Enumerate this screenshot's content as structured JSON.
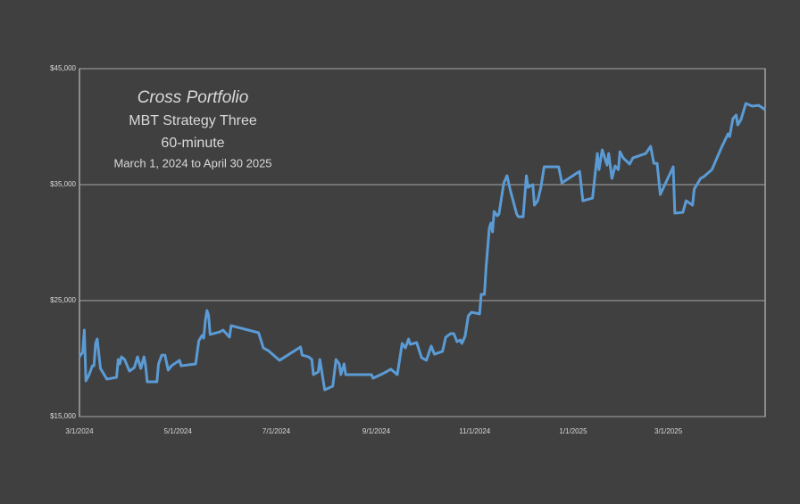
{
  "chart_data": {
    "type": "line",
    "title": "Cross Portfolio",
    "subtitle": [
      "MBT Strategy Three",
      "60-minute",
      "March 1, 2024 to April 30 2025"
    ],
    "x": [
      "2024-03-01",
      "2024-03-03",
      "2024-03-04",
      "2024-03-05",
      "2024-03-07",
      "2024-03-09",
      "2024-03-10",
      "2024-03-11",
      "2024-03-12",
      "2024-03-14",
      "2024-03-18",
      "2024-03-24",
      "2024-03-25",
      "2024-03-26",
      "2024-03-27",
      "2024-03-29",
      "2024-04-01",
      "2024-04-04",
      "2024-04-06",
      "2024-04-08",
      "2024-04-10",
      "2024-04-11",
      "2024-04-12",
      "2024-04-18",
      "2024-04-19",
      "2024-04-21",
      "2024-04-23",
      "2024-04-25",
      "2024-04-27",
      "2024-05-02",
      "2024-05-03",
      "2024-05-12",
      "2024-05-14",
      "2024-05-16",
      "2024-05-17",
      "2024-05-18",
      "2024-05-19",
      "2024-05-20",
      "2024-05-21",
      "2024-05-27",
      "2024-05-29",
      "2024-06-01",
      "2024-06-02",
      "2024-06-03",
      "2024-06-20",
      "2024-06-23",
      "2024-06-26",
      "2024-07-03",
      "2024-07-16",
      "2024-07-17",
      "2024-07-21",
      "2024-07-23",
      "2024-07-24",
      "2024-07-27",
      "2024-07-28",
      "2024-07-31",
      "2024-08-05",
      "2024-08-07",
      "2024-08-09",
      "2024-08-10",
      "2024-08-12",
      "2024-08-13",
      "2024-08-29",
      "2024-08-30",
      "2024-09-06",
      "2024-09-10",
      "2024-09-14",
      "2024-09-17",
      "2024-09-19",
      "2024-09-21",
      "2024-09-22",
      "2024-09-26",
      "2024-09-29",
      "2024-10-02",
      "2024-10-05",
      "2024-10-07",
      "2024-10-12",
      "2024-10-14",
      "2024-10-17",
      "2024-10-19",
      "2024-10-21",
      "2024-10-23",
      "2024-10-24",
      "2024-10-26",
      "2024-10-28",
      "2024-10-30",
      "2024-11-04",
      "2024-11-05",
      "2024-11-07",
      "2024-11-08",
      "2024-11-10",
      "2024-11-11",
      "2024-11-12",
      "2024-11-13",
      "2024-11-15",
      "2024-11-16",
      "2024-11-19",
      "2024-11-21",
      "2024-11-23",
      "2024-11-27",
      "2024-11-28",
      "2024-12-01",
      "2024-12-03",
      "2024-12-04",
      "2024-12-07",
      "2024-12-08",
      "2024-12-10",
      "2024-12-12",
      "2024-12-14",
      "2024-12-23",
      "2024-12-25",
      "2025-01-05",
      "2025-01-07",
      "2025-01-13",
      "2025-01-16",
      "2025-01-17",
      "2025-01-19",
      "2025-01-22",
      "2025-01-23",
      "2025-01-25",
      "2025-01-27",
      "2025-01-29",
      "2025-01-30",
      "2025-02-01",
      "2025-02-05",
      "2025-02-07",
      "2025-02-15",
      "2025-02-18",
      "2025-02-20",
      "2025-02-22",
      "2025-02-24",
      "2025-03-04",
      "2025-03-05",
      "2025-03-10",
      "2025-03-12",
      "2025-03-16",
      "2025-03-17",
      "2025-03-21",
      "2025-03-23",
      "2025-03-28",
      "2025-04-03",
      "2025-04-07",
      "2025-04-08",
      "2025-04-10",
      "2025-04-12",
      "2025-04-13",
      "2025-04-15",
      "2025-04-18",
      "2025-04-22",
      "2025-04-26",
      "2025-04-30"
    ],
    "series": [
      {
        "color": "#5b9bd5",
        "values": [
          20150,
          20540,
          22460,
          18080,
          18620,
          19380,
          19380,
          21310,
          21690,
          19150,
          18230,
          18380,
          19920,
          19540,
          20150,
          19920,
          18920,
          19230,
          20150,
          19150,
          20150,
          19380,
          18000,
          18000,
          19540,
          20300,
          20300,
          19000,
          19380,
          19850,
          19380,
          19540,
          21540,
          22000,
          21770,
          23230,
          24150,
          23770,
          22080,
          22300,
          22460,
          22000,
          21850,
          22840,
          22230,
          20920,
          20690,
          19850,
          21000,
          20300,
          20150,
          19920,
          18620,
          18850,
          19920,
          17310,
          17620,
          19920,
          19540,
          18620,
          19540,
          18620,
          18620,
          18310,
          18770,
          19080,
          18620,
          21310,
          20920,
          21690,
          21230,
          21380,
          20080,
          19850,
          21080,
          20380,
          20620,
          21840,
          22150,
          22150,
          21460,
          21610,
          21310,
          21920,
          23690,
          24000,
          23850,
          25540,
          25540,
          27840,
          31230,
          31690,
          30920,
          32690,
          32310,
          32460,
          35150,
          35770,
          34540,
          32460,
          32230,
          32230,
          35770,
          34770,
          35000,
          33230,
          33610,
          34770,
          36540,
          36540,
          35150,
          36150,
          33610,
          33840,
          37690,
          36300,
          38000,
          36690,
          37690,
          35540,
          36610,
          36300,
          37840,
          37300,
          36770,
          37300,
          37690,
          38300,
          36840,
          36840,
          34150,
          36540,
          32540,
          32610,
          33610,
          33230,
          34610,
          35540,
          35690,
          36300,
          38230,
          39380,
          39150,
          40690,
          41000,
          40150,
          40610,
          42000,
          41770,
          41840,
          41460
        ]
      }
    ],
    "xlim": [
      "2024-03-01",
      "2025-04-30"
    ],
    "xticks": [
      {
        "value": "2024-03-01",
        "label": "3/1/2024"
      },
      {
        "value": "2024-05-01",
        "label": "5/1/2024"
      },
      {
        "value": "2024-07-01",
        "label": "7/1/2024"
      },
      {
        "value": "2024-09-01",
        "label": "9/1/2024"
      },
      {
        "value": "2024-11-01",
        "label": "11/1/2024"
      },
      {
        "value": "2025-01-01",
        "label": "1/1/2025"
      },
      {
        "value": "2025-03-01",
        "label": "3/1/2025"
      }
    ],
    "ylim": [
      15000,
      45000
    ],
    "yticks": [
      {
        "value": 15000,
        "label": "$15,000"
      },
      {
        "value": 25000,
        "label": "$25,000"
      },
      {
        "value": 35000,
        "label": "$35,000"
      },
      {
        "value": 45000,
        "label": "$45,000"
      }
    ],
    "grid": true
  }
}
